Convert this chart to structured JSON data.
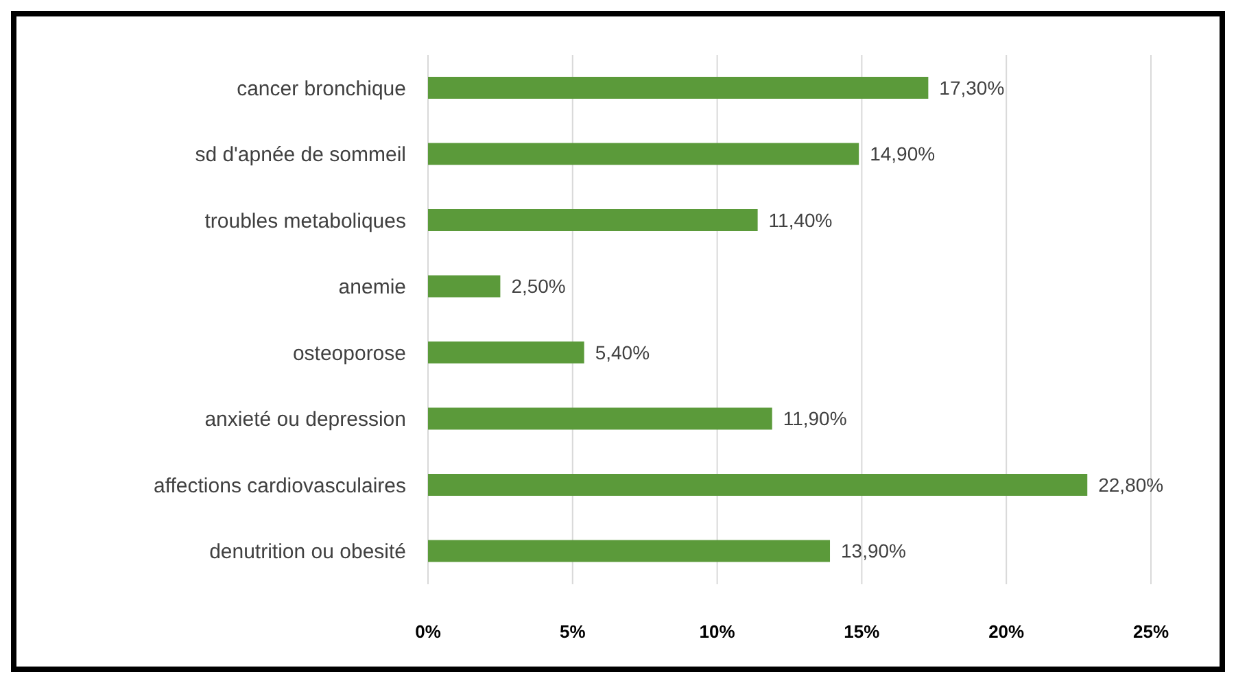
{
  "chart_data": {
    "type": "bar",
    "orientation": "horizontal",
    "categories": [
      "cancer bronchique",
      "sd d'apnée de sommeil",
      "troubles metaboliques",
      "anemie",
      "osteoporose",
      "anxieté ou depression",
      "affections cardiovasculaires",
      "denutrition ou obesité"
    ],
    "values": [
      17.3,
      14.9,
      11.4,
      2.5,
      5.4,
      11.9,
      22.8,
      13.9
    ],
    "value_labels": [
      "17,30%",
      "14,90%",
      "11,40%",
      "2,50%",
      "5,40%",
      "11,90%",
      "22,80%",
      "13,90%"
    ],
    "color": "#5b9a3a",
    "xlim": [
      0,
      25
    ],
    "xticks": [
      {
        "value": 0,
        "label": "0%"
      },
      {
        "value": 5,
        "label": "5%"
      },
      {
        "value": 10,
        "label": "10%"
      },
      {
        "value": 15,
        "label": "15%"
      },
      {
        "value": 20,
        "label": "20%"
      },
      {
        "value": 25,
        "label": "25%"
      }
    ],
    "grid": "x"
  }
}
